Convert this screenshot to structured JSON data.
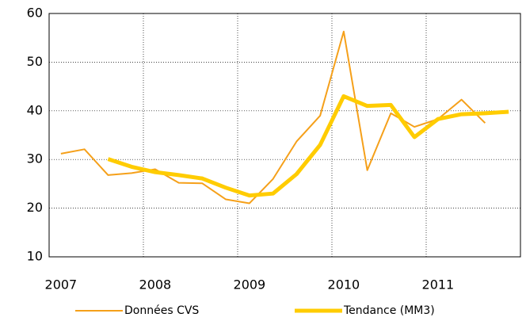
{
  "chart_data": {
    "type": "line",
    "categories": [
      "2007",
      null,
      null,
      null,
      "2008",
      null,
      null,
      null,
      "2009",
      null,
      null,
      null,
      "2010",
      null,
      null,
      null,
      "2011",
      null,
      null,
      null
    ],
    "series": [
      {
        "name": "Données CVS",
        "color": "#f5a01a",
        "width": 2,
        "values": [
          31.2,
          32.1,
          26.8,
          27.2,
          28.0,
          25.2,
          25.1,
          21.8,
          21.0,
          26.0,
          33.7,
          39.0,
          56.3,
          27.8,
          39.5,
          36.7,
          38.3,
          42.3,
          37.5,
          null
        ]
      },
      {
        "name": "Tendance (MM3)",
        "color": "#ffcc00",
        "width": 5,
        "values": [
          null,
          null,
          30.1,
          28.5,
          27.4,
          26.8,
          26.1,
          24.2,
          22.6,
          23.0,
          27.0,
          33.0,
          43.0,
          41.0,
          41.2,
          34.6,
          38.3,
          39.3,
          39.5,
          39.8
        ]
      }
    ],
    "ylim": [
      10,
      60
    ],
    "yticks": [
      10,
      20,
      30,
      40,
      50,
      60
    ],
    "grid": true,
    "legend": "bottom"
  }
}
